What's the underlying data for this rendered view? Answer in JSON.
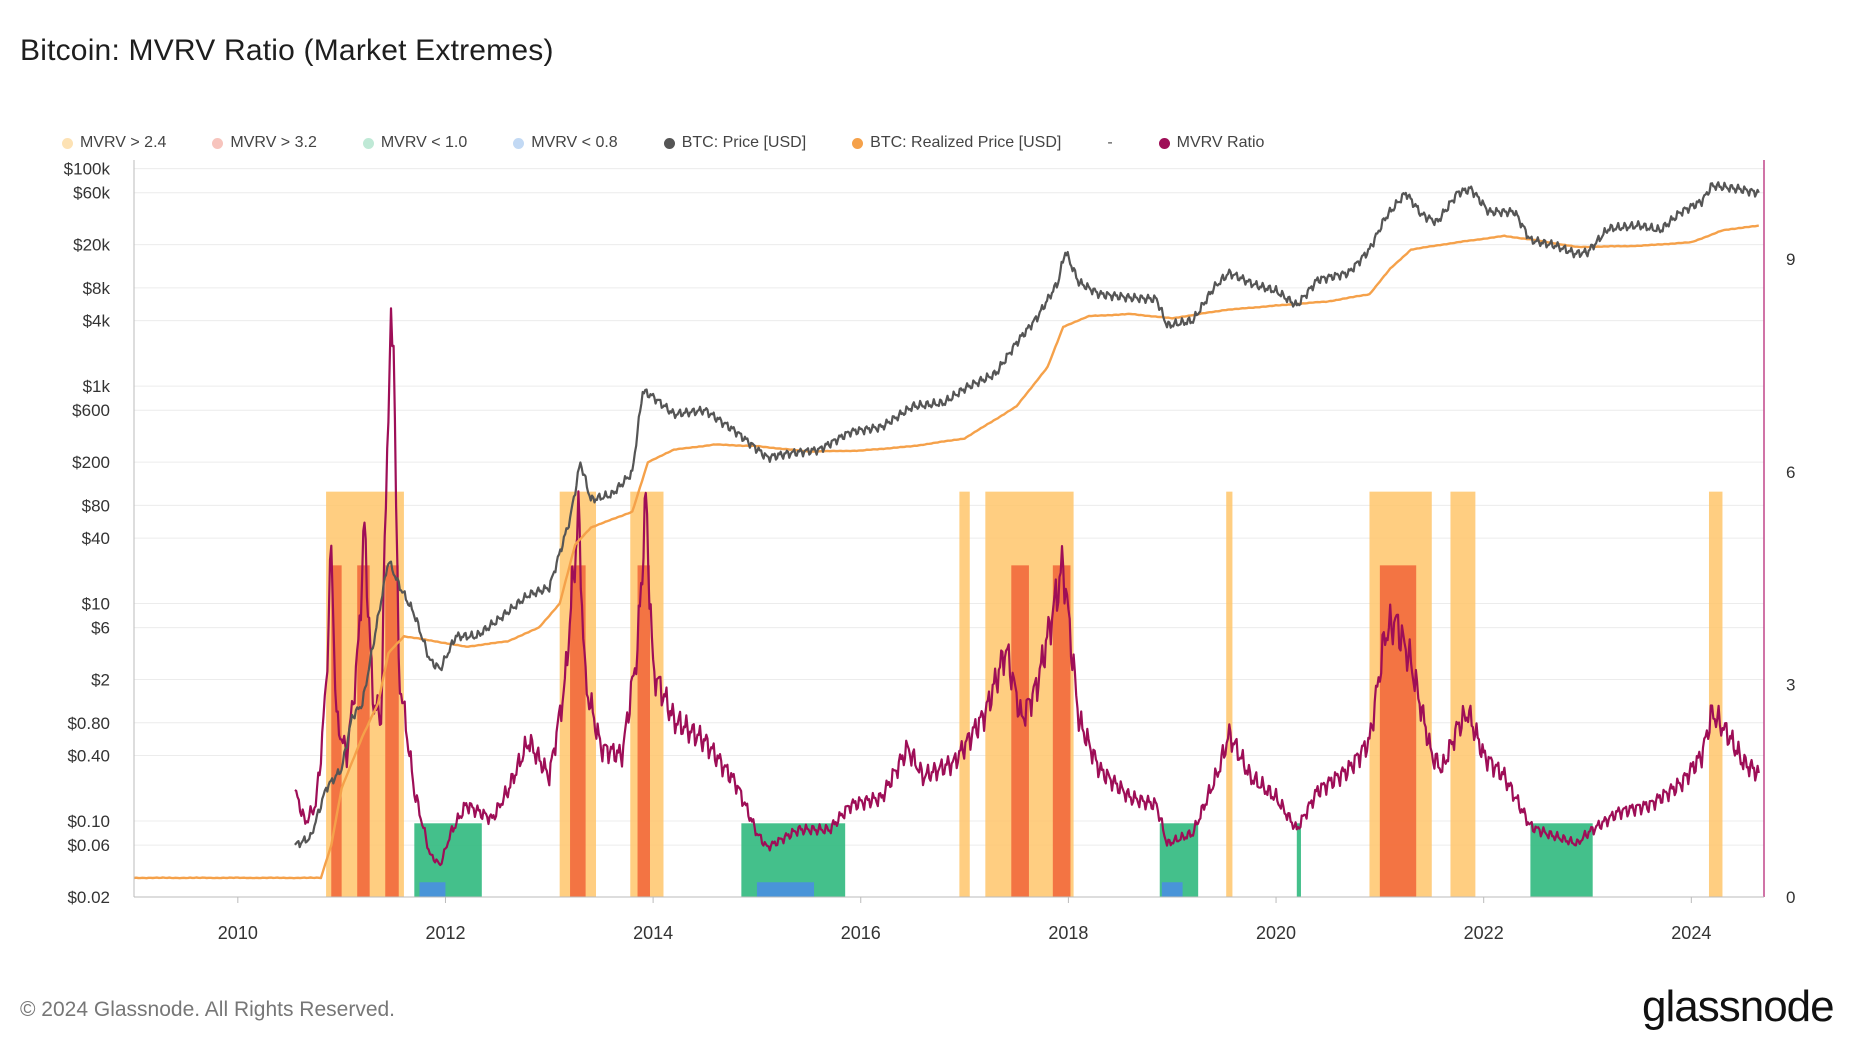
{
  "title": "Bitcoin: MVRV Ratio (Market Extremes)",
  "footer": "© 2024 Glassnode. All Rights Reserved.",
  "logo": "glassnode",
  "legend": [
    {
      "label": "MVRV > 2.4",
      "color": "#fde2b4"
    },
    {
      "label": "MVRV > 3.2",
      "color": "#f7c4bd"
    },
    {
      "label": "MVRV < 1.0",
      "color": "#bfe9d6"
    },
    {
      "label": "MVRV < 0.8",
      "color": "#c2d9f4"
    },
    {
      "label": "BTC: Price [USD]",
      "color": "#555555"
    },
    {
      "label": "BTC: Realized Price [USD]",
      "color": "#f5a14a"
    },
    {
      "label": "MVRV Ratio",
      "color": "#9e0e57"
    }
  ],
  "legend_dash": "-",
  "colors": {
    "price": "#555555",
    "realized": "#f5a14a",
    "mvrv": "#9e0e57",
    "band_hot": "#f26a3c",
    "band_warm": "#ffc56b",
    "band_green": "#30b97e",
    "band_blue": "#4a8fe0",
    "grid": "#ececec"
  },
  "chart_data": {
    "type": "line",
    "title": "Bitcoin: MVRV Ratio (Market Extremes)",
    "x_ticks": [
      "2010",
      "2012",
      "2014",
      "2016",
      "2018",
      "2020",
      "2022",
      "2024"
    ],
    "x_range": [
      2009.0,
      2024.7
    ],
    "y_left_ticks": [
      {
        "label": "$100k",
        "value": 100000
      },
      {
        "label": "$60k",
        "value": 60000
      },
      {
        "label": "$20k",
        "value": 20000
      },
      {
        "label": "$8k",
        "value": 8000
      },
      {
        "label": "$4k",
        "value": 4000
      },
      {
        "label": "$1k",
        "value": 1000
      },
      {
        "label": "$600",
        "value": 600
      },
      {
        "label": "$200",
        "value": 200
      },
      {
        "label": "$80",
        "value": 80
      },
      {
        "label": "$40",
        "value": 40
      },
      {
        "label": "$10",
        "value": 10
      },
      {
        "label": "$6",
        "value": 6
      },
      {
        "label": "$2",
        "value": 2
      },
      {
        "label": "$0.80",
        "value": 0.8
      },
      {
        "label": "$0.40",
        "value": 0.4
      },
      {
        "label": "$0.10",
        "value": 0.1
      },
      {
        "label": "$0.06",
        "value": 0.06
      },
      {
        "label": "$0.02",
        "value": 0.02
      }
    ],
    "y_left_scale": "log",
    "y_left_range": [
      0.02,
      120000
    ],
    "y_right_ticks": [
      {
        "label": "0",
        "value": 0
      },
      {
        "label": "3",
        "value": 3
      },
      {
        "label": "6",
        "value": 6
      },
      {
        "label": "9",
        "value": 9
      }
    ],
    "y_right_range": [
      0,
      10.4
    ],
    "series": [
      {
        "name": "BTC: Price [USD]",
        "axis": "left",
        "points": [
          [
            2010.55,
            0.06
          ],
          [
            2010.7,
            0.07
          ],
          [
            2010.85,
            0.2
          ],
          [
            2011.0,
            0.3
          ],
          [
            2011.1,
            0.9
          ],
          [
            2011.2,
            1.2
          ],
          [
            2011.3,
            4
          ],
          [
            2011.45,
            25
          ],
          [
            2011.55,
            15
          ],
          [
            2011.7,
            8
          ],
          [
            2011.85,
            3
          ],
          [
            2011.95,
            2.5
          ],
          [
            2012.1,
            5
          ],
          [
            2012.3,
            5
          ],
          [
            2012.5,
            7
          ],
          [
            2012.8,
            12
          ],
          [
            2013.0,
            14
          ],
          [
            2013.2,
            60
          ],
          [
            2013.3,
            200
          ],
          [
            2013.4,
            90
          ],
          [
            2013.6,
            100
          ],
          [
            2013.8,
            160
          ],
          [
            2013.9,
            900
          ],
          [
            2014.0,
            800
          ],
          [
            2014.2,
            550
          ],
          [
            2014.5,
            600
          ],
          [
            2014.8,
            380
          ],
          [
            2015.1,
            220
          ],
          [
            2015.3,
            240
          ],
          [
            2015.6,
            260
          ],
          [
            2015.9,
            380
          ],
          [
            2016.2,
            420
          ],
          [
            2016.5,
            650
          ],
          [
            2016.8,
            700
          ],
          [
            2017.0,
            950
          ],
          [
            2017.3,
            1300
          ],
          [
            2017.5,
            2500
          ],
          [
            2017.7,
            4300
          ],
          [
            2017.9,
            9000
          ],
          [
            2017.97,
            17500
          ],
          [
            2018.1,
            9000
          ],
          [
            2018.3,
            7000
          ],
          [
            2018.6,
            6500
          ],
          [
            2018.85,
            6300
          ],
          [
            2018.95,
            3600
          ],
          [
            2019.2,
            4000
          ],
          [
            2019.4,
            8000
          ],
          [
            2019.55,
            11000
          ],
          [
            2019.8,
            8500
          ],
          [
            2020.0,
            7500
          ],
          [
            2020.2,
            5500
          ],
          [
            2020.4,
            9500
          ],
          [
            2020.7,
            11000
          ],
          [
            2020.9,
            18000
          ],
          [
            2021.05,
            35000
          ],
          [
            2021.25,
            60000
          ],
          [
            2021.4,
            38000
          ],
          [
            2021.55,
            32000
          ],
          [
            2021.75,
            60000
          ],
          [
            2021.88,
            65000
          ],
          [
            2022.05,
            40000
          ],
          [
            2022.3,
            40000
          ],
          [
            2022.45,
            22000
          ],
          [
            2022.7,
            19500
          ],
          [
            2022.88,
            16500
          ],
          [
            2023.0,
            17000
          ],
          [
            2023.2,
            28000
          ],
          [
            2023.5,
            30000
          ],
          [
            2023.7,
            27000
          ],
          [
            2023.9,
            40000
          ],
          [
            2024.1,
            50000
          ],
          [
            2024.2,
            70000
          ],
          [
            2024.45,
            65000
          ],
          [
            2024.65,
            60000
          ]
        ]
      },
      {
        "name": "BTC: Realized Price [USD]",
        "axis": "left",
        "points": [
          [
            2009.0,
            0.03
          ],
          [
            2010.8,
            0.03
          ],
          [
            2010.9,
            0.06
          ],
          [
            2011.0,
            0.2
          ],
          [
            2011.2,
            0.6
          ],
          [
            2011.35,
            1.2
          ],
          [
            2011.45,
            3.5
          ],
          [
            2011.6,
            5
          ],
          [
            2011.9,
            4.5
          ],
          [
            2012.2,
            4
          ],
          [
            2012.6,
            4.5
          ],
          [
            2012.9,
            6
          ],
          [
            2013.1,
            10
          ],
          [
            2013.25,
            35
          ],
          [
            2013.4,
            50
          ],
          [
            2013.8,
            70
          ],
          [
            2013.95,
            200
          ],
          [
            2014.2,
            260
          ],
          [
            2014.6,
            290
          ],
          [
            2015.0,
            280
          ],
          [
            2015.5,
            250
          ],
          [
            2016.0,
            255
          ],
          [
            2016.5,
            280
          ],
          [
            2017.0,
            330
          ],
          [
            2017.5,
            650
          ],
          [
            2017.8,
            1500
          ],
          [
            2017.95,
            3500
          ],
          [
            2018.2,
            4400
          ],
          [
            2018.6,
            4600
          ],
          [
            2019.0,
            4200
          ],
          [
            2019.5,
            5000
          ],
          [
            2020.0,
            5500
          ],
          [
            2020.5,
            6000
          ],
          [
            2020.9,
            7000
          ],
          [
            2021.1,
            12000
          ],
          [
            2021.3,
            18000
          ],
          [
            2021.6,
            20000
          ],
          [
            2021.9,
            22000
          ],
          [
            2022.2,
            24000
          ],
          [
            2022.5,
            22000
          ],
          [
            2022.9,
            19000
          ],
          [
            2023.5,
            19500
          ],
          [
            2024.0,
            21000
          ],
          [
            2024.3,
            27000
          ],
          [
            2024.65,
            30000
          ]
        ]
      },
      {
        "name": "MVRV Ratio",
        "axis": "right",
        "points": [
          [
            2010.55,
            1.5
          ],
          [
            2010.65,
            1.05
          ],
          [
            2010.75,
            1.3
          ],
          [
            2010.8,
            2.0
          ],
          [
            2010.85,
            3.0
          ],
          [
            2010.9,
            4.9
          ],
          [
            2010.95,
            2.5
          ],
          [
            2011.05,
            2.0
          ],
          [
            2011.15,
            3.3
          ],
          [
            2011.22,
            5.2
          ],
          [
            2011.3,
            2.8
          ],
          [
            2011.38,
            2.5
          ],
          [
            2011.45,
            7.2
          ],
          [
            2011.5,
            8.1
          ],
          [
            2011.55,
            3.2
          ],
          [
            2011.7,
            1.5
          ],
          [
            2011.85,
            0.6
          ],
          [
            2011.95,
            0.45
          ],
          [
            2012.05,
            0.9
          ],
          [
            2012.2,
            1.3
          ],
          [
            2012.45,
            1.1
          ],
          [
            2012.6,
            1.5
          ],
          [
            2012.8,
            2.2
          ],
          [
            2013.0,
            1.7
          ],
          [
            2013.15,
            3.0
          ],
          [
            2013.28,
            5.4
          ],
          [
            2013.35,
            3.0
          ],
          [
            2013.5,
            2.1
          ],
          [
            2013.7,
            2.0
          ],
          [
            2013.85,
            3.5
          ],
          [
            2013.93,
            5.6
          ],
          [
            2014.0,
            3.2
          ],
          [
            2014.2,
            2.5
          ],
          [
            2014.5,
            2.2
          ],
          [
            2014.8,
            1.6
          ],
          [
            2015.0,
            0.9
          ],
          [
            2015.1,
            0.7
          ],
          [
            2015.4,
            0.95
          ],
          [
            2015.7,
            0.95
          ],
          [
            2015.9,
            1.3
          ],
          [
            2016.2,
            1.4
          ],
          [
            2016.45,
            2.1
          ],
          [
            2016.6,
            1.7
          ],
          [
            2016.9,
            1.9
          ],
          [
            2017.2,
            2.6
          ],
          [
            2017.4,
            3.5
          ],
          [
            2017.55,
            2.5
          ],
          [
            2017.7,
            3.0
          ],
          [
            2017.95,
            4.7
          ],
          [
            2018.1,
            2.5
          ],
          [
            2018.3,
            1.8
          ],
          [
            2018.6,
            1.4
          ],
          [
            2018.85,
            1.3
          ],
          [
            2018.95,
            0.75
          ],
          [
            2019.2,
            0.9
          ],
          [
            2019.45,
            1.8
          ],
          [
            2019.55,
            2.3
          ],
          [
            2019.75,
            1.7
          ],
          [
            2020.0,
            1.4
          ],
          [
            2020.2,
            0.95
          ],
          [
            2020.4,
            1.5
          ],
          [
            2020.7,
            1.8
          ],
          [
            2020.9,
            2.2
          ],
          [
            2021.05,
            3.7
          ],
          [
            2021.15,
            3.9
          ],
          [
            2021.3,
            3.3
          ],
          [
            2021.5,
            2.0
          ],
          [
            2021.6,
            1.8
          ],
          [
            2021.75,
            2.4
          ],
          [
            2021.85,
            2.6
          ],
          [
            2022.0,
            2.0
          ],
          [
            2022.2,
            1.7
          ],
          [
            2022.45,
            1.0
          ],
          [
            2022.6,
            0.9
          ],
          [
            2022.9,
            0.75
          ],
          [
            2023.0,
            0.9
          ],
          [
            2023.3,
            1.2
          ],
          [
            2023.6,
            1.3
          ],
          [
            2023.9,
            1.6
          ],
          [
            2024.1,
            2.0
          ],
          [
            2024.2,
            2.6
          ],
          [
            2024.35,
            2.3
          ],
          [
            2024.5,
            1.9
          ],
          [
            2024.65,
            1.75
          ]
        ]
      }
    ],
    "bands": [
      {
        "type": "hot",
        "ranges": [
          [
            2010.9,
            2011.0
          ],
          [
            2011.15,
            2011.27
          ],
          [
            2011.42,
            2011.55
          ],
          [
            2013.2,
            2013.35
          ],
          [
            2013.85,
            2013.97
          ],
          [
            2017.45,
            2017.62
          ],
          [
            2017.85,
            2018.02
          ],
          [
            2021.0,
            2021.35
          ]
        ]
      },
      {
        "type": "warm",
        "ranges": [
          [
            2010.85,
            2011.6
          ],
          [
            2013.1,
            2013.45
          ],
          [
            2013.78,
            2014.1
          ],
          [
            2016.95,
            2017.05
          ],
          [
            2017.2,
            2018.05
          ],
          [
            2019.52,
            2019.58
          ],
          [
            2020.9,
            2021.5
          ],
          [
            2021.68,
            2021.92
          ],
          [
            2024.17,
            2024.3
          ]
        ]
      },
      {
        "type": "green",
        "ranges": [
          [
            2011.7,
            2012.35
          ],
          [
            2014.85,
            2015.85
          ],
          [
            2018.88,
            2019.25
          ],
          [
            2020.2,
            2020.24
          ],
          [
            2022.45,
            2023.05
          ]
        ]
      },
      {
        "type": "blue",
        "ranges": [
          [
            2011.75,
            2012.0
          ],
          [
            2015.0,
            2015.55
          ],
          [
            2018.9,
            2019.1
          ]
        ]
      }
    ]
  }
}
